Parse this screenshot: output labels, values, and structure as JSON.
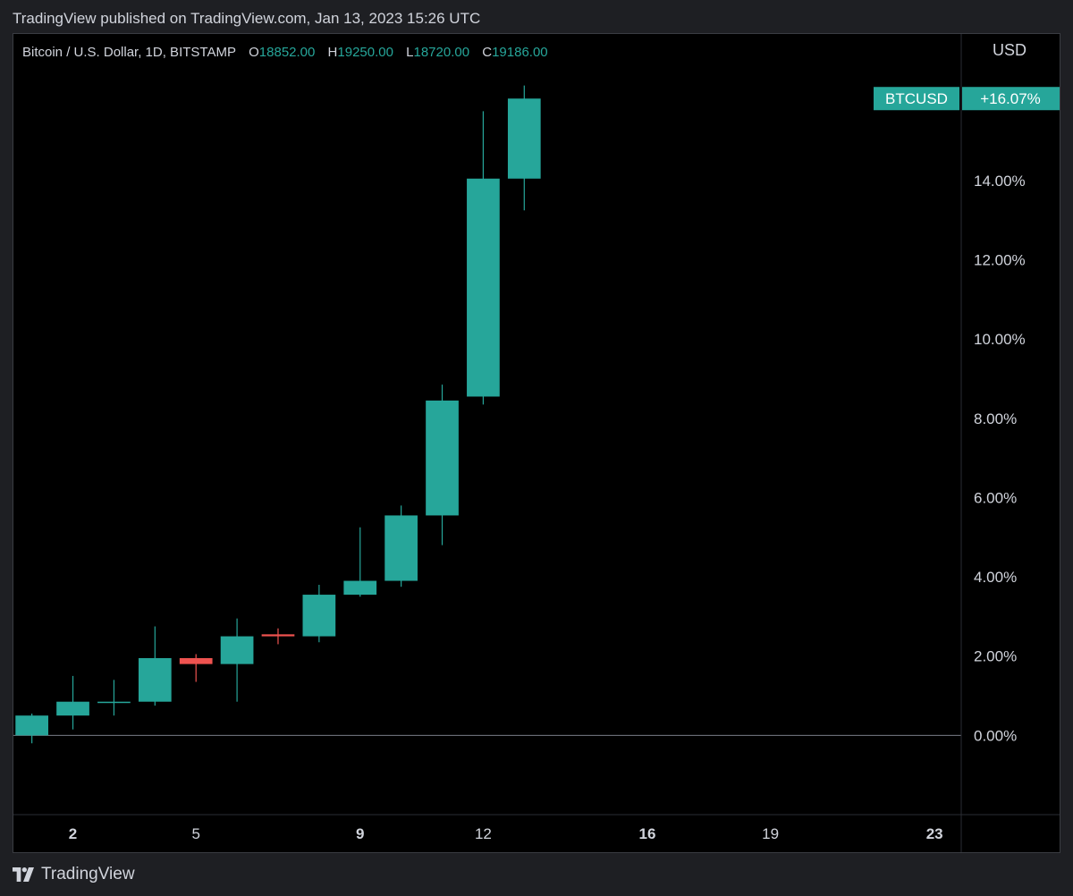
{
  "header": {
    "published_text": "TradingView published on TradingView.com, Jan 13, 2023 15:26 UTC"
  },
  "legend": {
    "symbol": "Bitcoin / U.S. Dollar, 1D, BITSTAMP",
    "open_label": "O",
    "open_value": "18852.00",
    "high_label": "H",
    "high_value": "19250.00",
    "low_label": "L",
    "low_value": "18720.00",
    "close_label": "C",
    "close_value": "19186.00"
  },
  "price_scale": {
    "currency": "USD",
    "ticker_tag": "BTCUSD",
    "last_change_label": "+16.07%"
  },
  "footer": {
    "brand": "TradingView",
    "logo": "tradingview-logo-icon"
  },
  "colors": {
    "up": "#26a69a",
    "down": "#ef5350",
    "background": "#000000",
    "text": "#d1d4dc",
    "zero_line": "#787b86"
  },
  "chart_data": {
    "type": "candlestick",
    "title": "Bitcoin / U.S. Dollar, 1D, BITSTAMP",
    "y_unit": "percent change",
    "ylim": [
      -2.0,
      17.7
    ],
    "y_ticks": [
      0,
      2,
      4,
      6,
      8,
      10,
      12,
      14
    ],
    "y_tick_labels": [
      "0.00%",
      "2.00%",
      "4.00%",
      "6.00%",
      "8.00%",
      "10.00%",
      "12.00%",
      "14.00%"
    ],
    "x_range_days": [
      0.55,
      23.65
    ],
    "x_ticks": [
      2,
      5,
      9,
      12,
      16,
      19,
      23
    ],
    "x_tick_labels": [
      "2",
      "5",
      "9",
      "12",
      "16",
      "19",
      "23"
    ],
    "x_tick_bold": [
      true,
      false,
      true,
      false,
      true,
      false,
      true
    ],
    "candles": [
      {
        "day": 1,
        "open": 0.0,
        "high": 0.55,
        "low": -0.2,
        "close": 0.5
      },
      {
        "day": 2,
        "open": 0.5,
        "high": 1.5,
        "low": 0.15,
        "close": 0.85
      },
      {
        "day": 3,
        "open": 0.85,
        "high": 1.4,
        "low": 0.5,
        "close": 0.85
      },
      {
        "day": 4,
        "open": 0.85,
        "high": 2.75,
        "low": 0.75,
        "close": 1.95
      },
      {
        "day": 5,
        "open": 1.95,
        "high": 2.05,
        "low": 1.35,
        "close": 1.8
      },
      {
        "day": 6,
        "open": 1.8,
        "high": 2.95,
        "low": 0.85,
        "close": 2.5
      },
      {
        "day": 7,
        "open": 2.55,
        "high": 2.7,
        "low": 2.3,
        "close": 2.5
      },
      {
        "day": 8,
        "open": 2.5,
        "high": 3.8,
        "low": 2.35,
        "close": 3.55
      },
      {
        "day": 9,
        "open": 3.55,
        "high": 5.25,
        "low": 3.5,
        "close": 3.9
      },
      {
        "day": 10,
        "open": 3.9,
        "high": 5.8,
        "low": 3.75,
        "close": 5.55
      },
      {
        "day": 11,
        "open": 5.55,
        "high": 8.85,
        "low": 4.8,
        "close": 8.45
      },
      {
        "day": 12,
        "open": 8.55,
        "high": 15.75,
        "low": 8.35,
        "close": 14.05
      },
      {
        "day": 13,
        "open": 14.05,
        "high": 16.4,
        "low": 13.25,
        "close": 16.07
      }
    ]
  }
}
